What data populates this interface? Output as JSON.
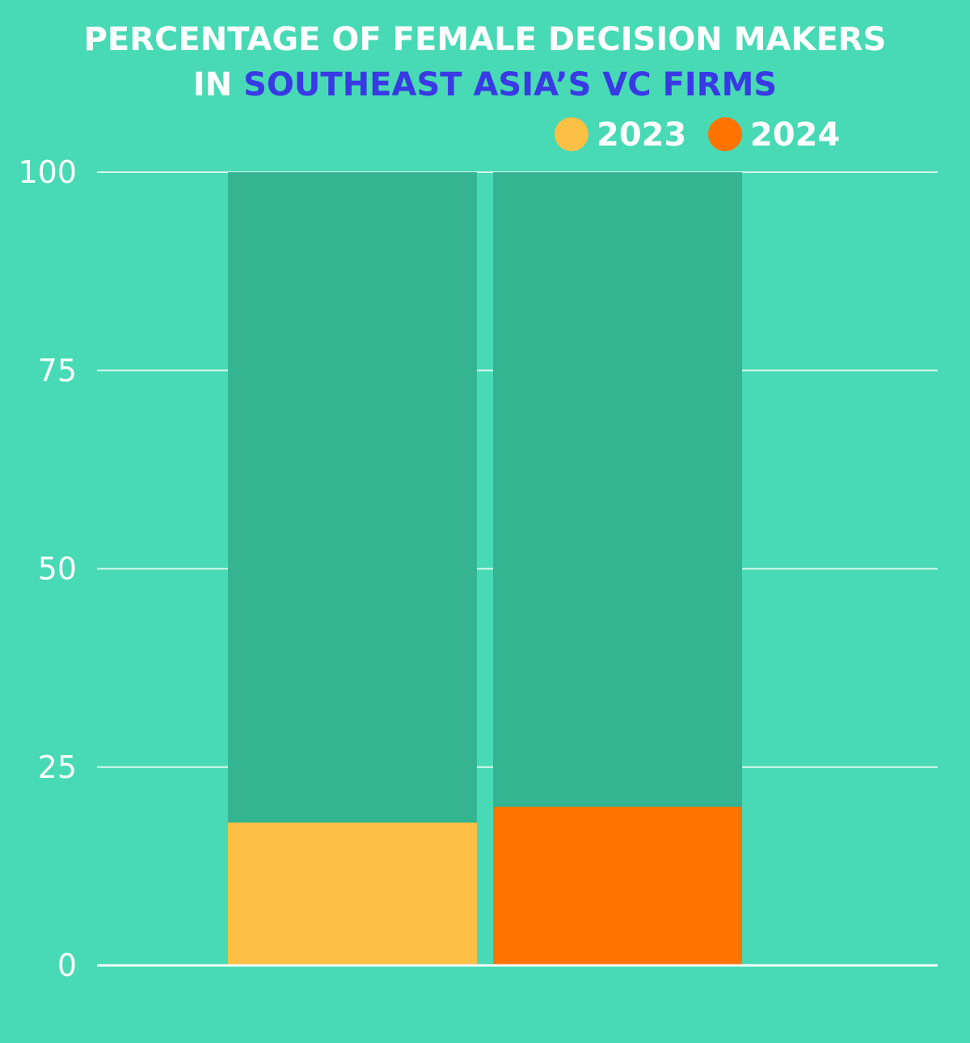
{
  "chart_data": {
    "type": "bar",
    "title_line1": "PERCENTAGE OF FEMALE DECISION MAKERS",
    "title_line2_prefix": "IN ",
    "title_line2_highlight": "SOUTHEAST ASIA’S VC FIRMS",
    "xlabel": "",
    "ylabel": "",
    "ylim": [
      0,
      100
    ],
    "yticks": [
      "0",
      "25",
      "50",
      "75",
      "100"
    ],
    "grid": true,
    "legend_position": "top-right",
    "series": [
      {
        "name": "2023",
        "value": 18,
        "color": "#fbc044"
      },
      {
        "name": "2024",
        "value": 20,
        "color": "#ff7300"
      }
    ],
    "max_value": 100
  },
  "colors": {
    "background": "#47dab4",
    "track": "#34b491",
    "grid": "#d9f7ec",
    "title": "#ffffff",
    "highlight": "#3939e5",
    "tick": "#ffffff"
  }
}
